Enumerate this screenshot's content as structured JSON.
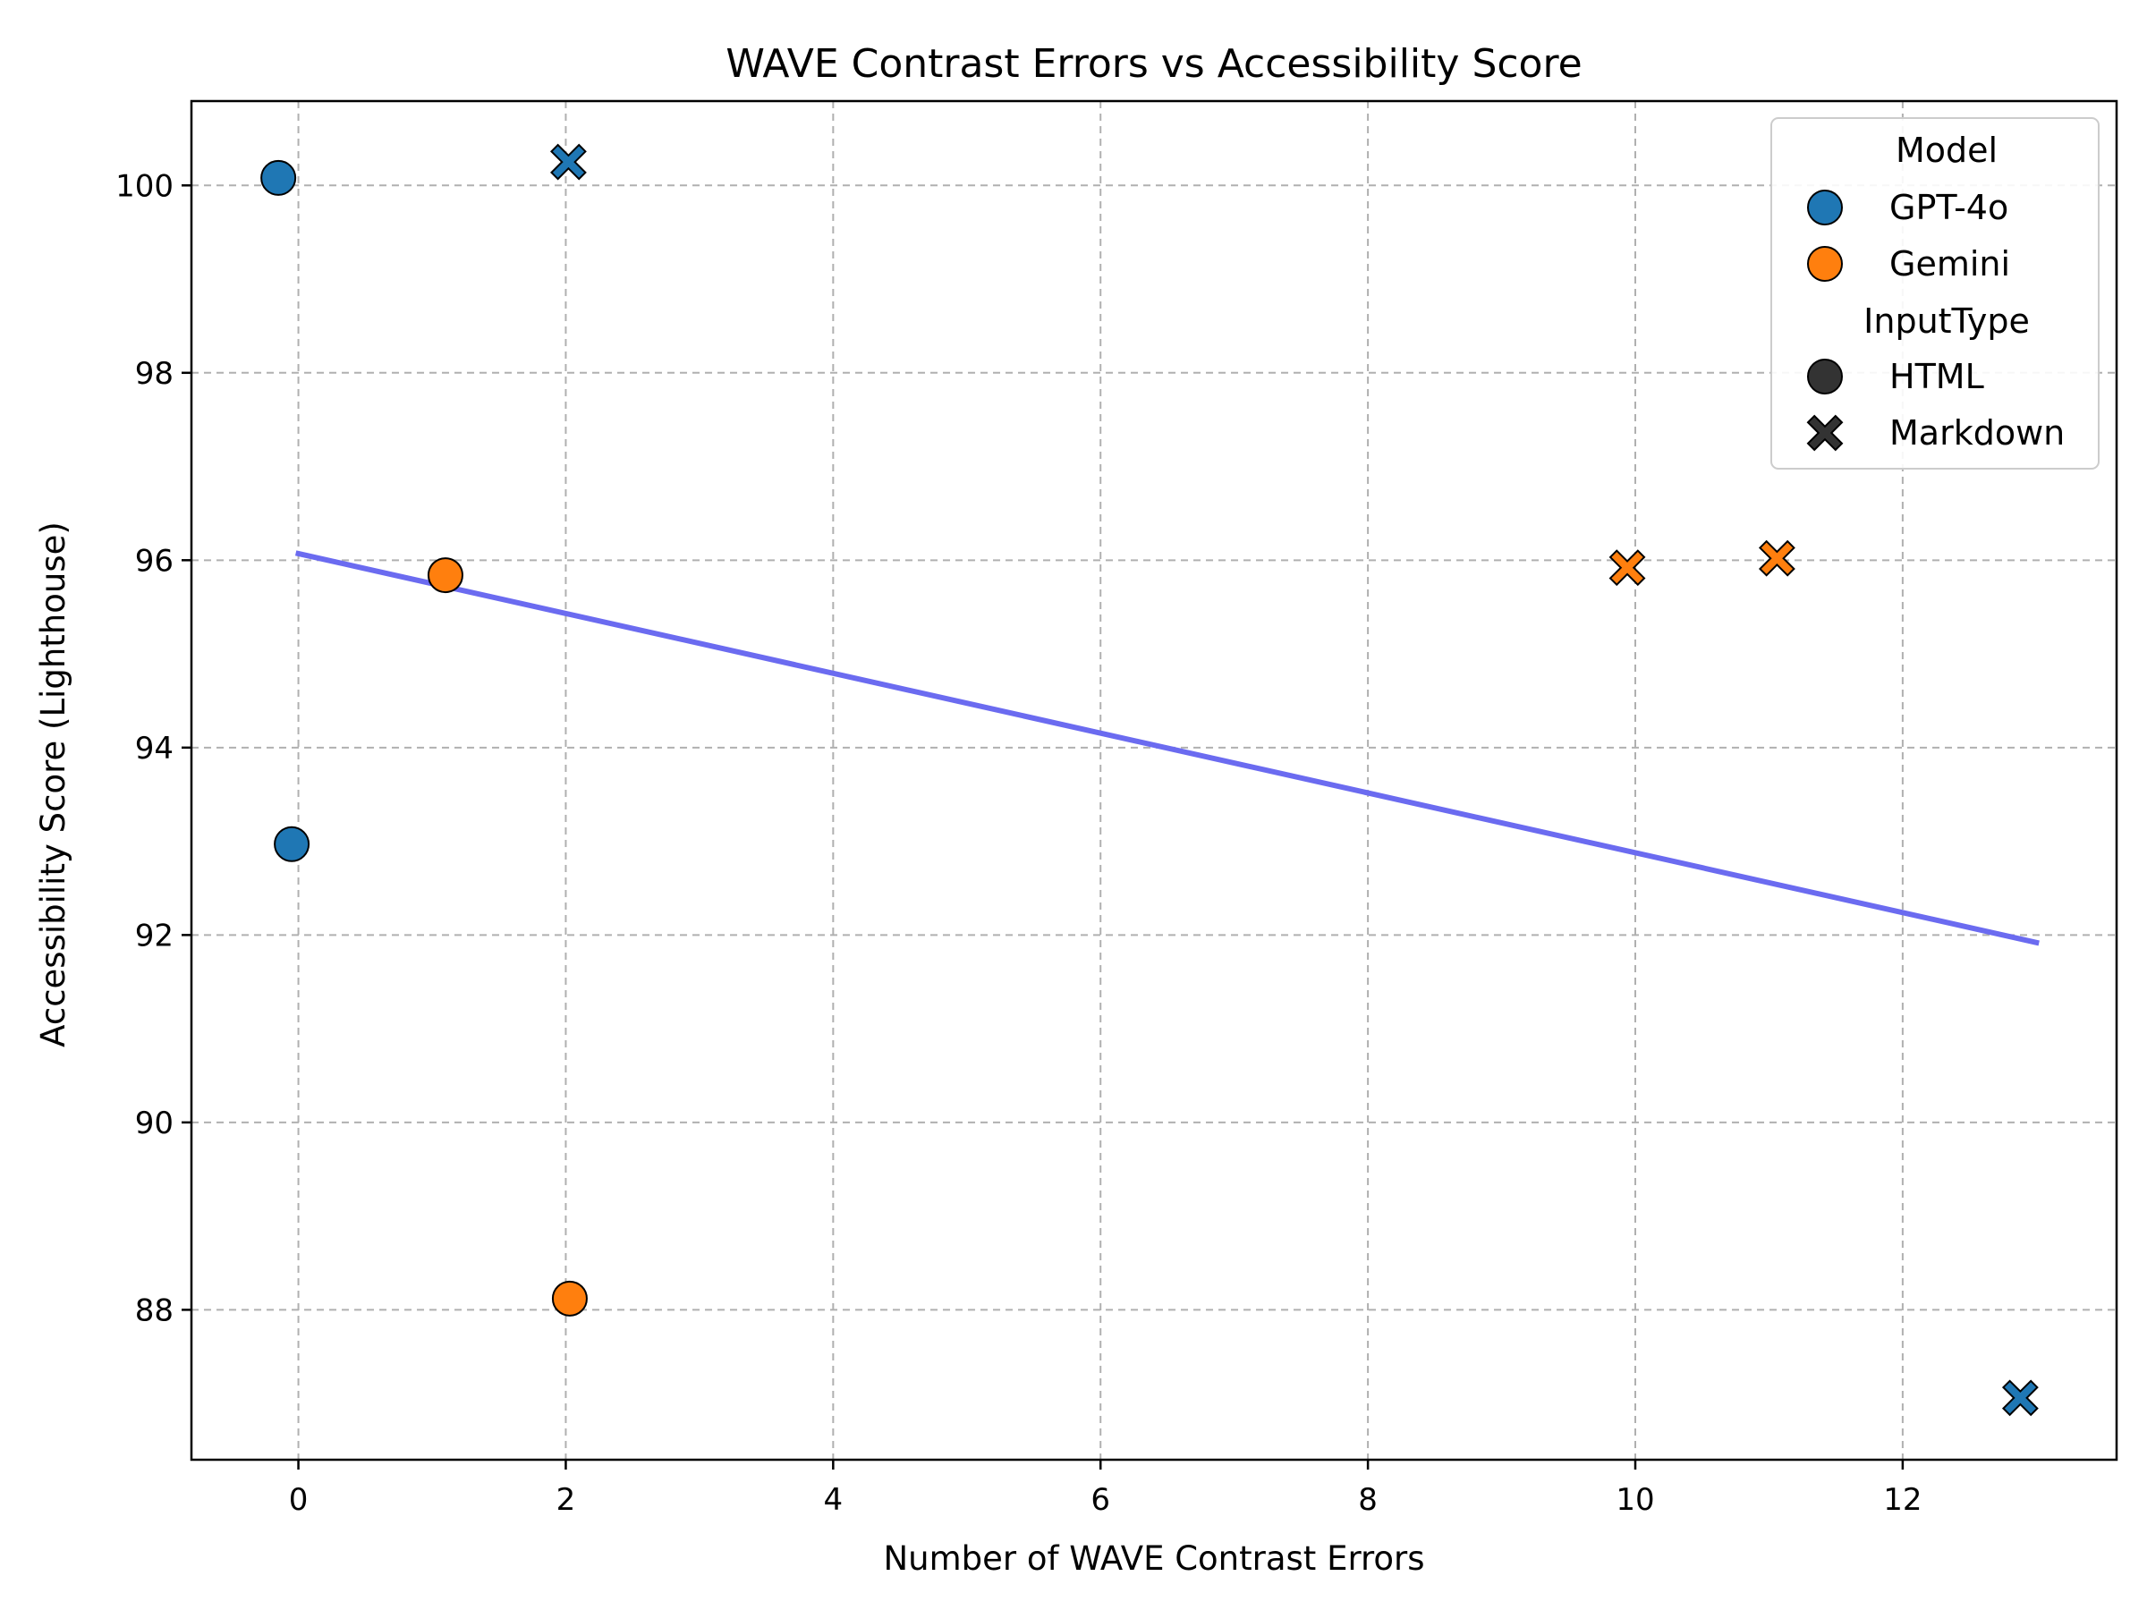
{
  "chart_data": {
    "type": "scatter",
    "title": "WAVE Contrast Errors vs Accessibility Score",
    "xlabel": "Number of WAVE Contrast Errors",
    "ylabel": "Accessibility Score (Lighthouse)",
    "xlim": [
      -0.8,
      13.6
    ],
    "ylim": [
      86.4,
      100.9
    ],
    "x_ticks": [
      0,
      2,
      4,
      6,
      8,
      10,
      12
    ],
    "y_ticks": [
      88,
      90,
      92,
      94,
      96,
      98,
      100
    ],
    "grid": true,
    "legend_position": "top-right",
    "colors": {
      "GPT-4o": "#1f77b4",
      "Gemini": "#ff7f0e",
      "marker_edge": "#000000",
      "legend_neutral": "#333333",
      "trend_line": "#6b6bf0",
      "grid": "#b0b0b0"
    },
    "legend": {
      "hue_title": "Model",
      "hue_entries": [
        "GPT-4o",
        "Gemini"
      ],
      "style_title": "InputType",
      "style_entries": [
        {
          "label": "HTML",
          "marker": "circle"
        },
        {
          "label": "Markdown",
          "marker": "x"
        }
      ]
    },
    "series": [
      {
        "model": "GPT-4o",
        "input_type": "HTML",
        "marker": "circle",
        "points": [
          {
            "x": -0.15,
            "y": 100.08
          },
          {
            "x": -0.05,
            "y": 92.97
          }
        ]
      },
      {
        "model": "GPT-4o",
        "input_type": "Markdown",
        "marker": "x",
        "points": [
          {
            "x": 2.02,
            "y": 100.25
          },
          {
            "x": 12.88,
            "y": 87.06
          }
        ]
      },
      {
        "model": "Gemini",
        "input_type": "HTML",
        "marker": "circle",
        "points": [
          {
            "x": 1.1,
            "y": 95.84
          },
          {
            "x": 2.03,
            "y": 88.12
          }
        ]
      },
      {
        "model": "Gemini",
        "input_type": "Markdown",
        "marker": "x",
        "points": [
          {
            "x": 9.94,
            "y": 95.92
          },
          {
            "x": 11.06,
            "y": 96.02
          }
        ]
      }
    ],
    "trend_line": {
      "x": [
        0,
        13
      ],
      "y": [
        96.07,
        91.92
      ]
    }
  }
}
